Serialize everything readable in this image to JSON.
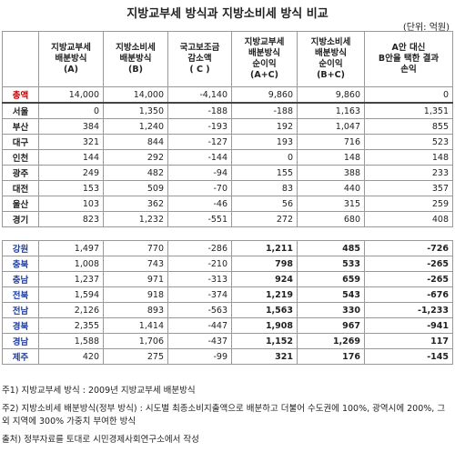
{
  "header": {
    "title": "지방교부세 방식과 지방소비세 방식 비교",
    "unit": "(단위: 억원)"
  },
  "table": {
    "columns": [
      "",
      "지방교부세\n배분방식\n(A)",
      "지방소비세\n배분방식\n(B)",
      "국고보조금\n감소액\n( C )",
      "지방교부세\n배분방식\n순이익\n(A+C)",
      "지방소비세\n배분방식\n순이익\n(B+C)",
      "A안 대신\nB안을 택한 결과\n손익"
    ],
    "total": [
      "총액",
      "14,000",
      "14,000",
      "-4,140",
      "9,860",
      "9,860",
      "0"
    ],
    "metro_rows": [
      [
        "서울",
        "0",
        "1,350",
        "-188",
        "-188",
        "1,163",
        "1,351"
      ],
      [
        "부산",
        "384",
        "1,240",
        "-193",
        "192",
        "1,047",
        "855"
      ],
      [
        "대구",
        "321",
        "844",
        "-127",
        "193",
        "716",
        "523"
      ],
      [
        "인천",
        "144",
        "292",
        "-144",
        "0",
        "148",
        "148"
      ],
      [
        "광주",
        "249",
        "482",
        "-94",
        "155",
        "388",
        "233"
      ],
      [
        "대전",
        "153",
        "509",
        "-70",
        "83",
        "440",
        "357"
      ],
      [
        "울산",
        "103",
        "362",
        "-46",
        "56",
        "315",
        "259"
      ],
      [
        "경기",
        "823",
        "1,232",
        "-551",
        "272",
        "680",
        "408"
      ]
    ],
    "province_rows": [
      [
        "강원",
        "1,497",
        "770",
        "-286",
        "1,211",
        "485",
        "-726"
      ],
      [
        "충북",
        "1,008",
        "743",
        "-210",
        "798",
        "533",
        "-265"
      ],
      [
        "충남",
        "1,237",
        "971",
        "-313",
        "924",
        "659",
        "-265"
      ],
      [
        "전북",
        "1,594",
        "918",
        "-374",
        "1,219",
        "543",
        "-676"
      ],
      [
        "전남",
        "2,126",
        "893",
        "-563",
        "1,563",
        "330",
        "-1,233"
      ],
      [
        "경북",
        "2,355",
        "1,414",
        "-447",
        "1,908",
        "967",
        "-941"
      ],
      [
        "경남",
        "1,588",
        "1,706",
        "-437",
        "1,152",
        "1,269",
        "117"
      ],
      [
        "제주",
        "420",
        "275",
        "-99",
        "321",
        "176",
        "-145"
      ]
    ]
  },
  "notes": [
    "주1) 지방교부세 방식 : 2009년 지방교부세 배분방식",
    "주2) 지방소비세 배분방식(정부 방식) : 시도별 최종소비지출액으로 배분하고 더불어 수도권에 100%, 광역시에 200%, 그 외 지역에 300% 가중치 부여한 방식",
    "출처) 정부자료를 토대로 시민경제사회연구소에서 작성"
  ]
}
